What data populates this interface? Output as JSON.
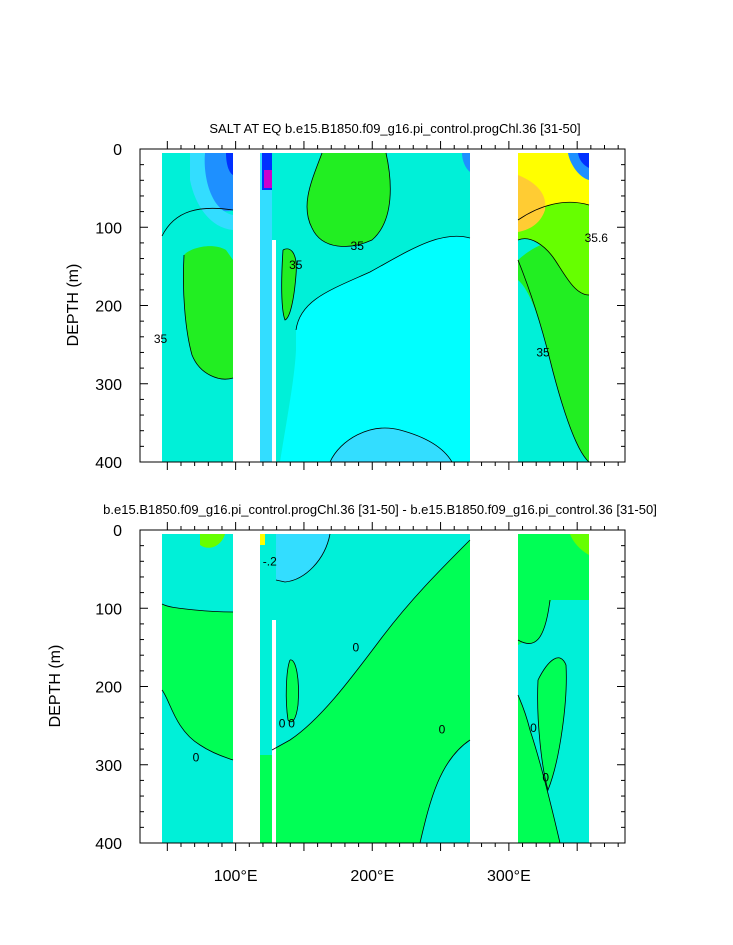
{
  "colors": {
    "cyan": "#00ffff",
    "aquamarine": "#00ffcc",
    "teal_light": "#00f0d8",
    "sky": "#33ddff",
    "blue_mid": "#1e90ff",
    "blue_dark": "#0030ff",
    "green": "#00ff55",
    "green_bright": "#22ee22",
    "lime": "#66ff00",
    "yellow": "#ffff00",
    "orange_yellow": "#ffcc33",
    "magenta": "#cc00cc",
    "brown": "#884400",
    "land": "#ffffff"
  },
  "chart_data": [
    {
      "type": "heatmap",
      "subtype": "contour",
      "title": "SALT AT EQ b.e15.B1850.f09_g16.pi_control.progChl.36 [31-50]",
      "xlabel": "",
      "ylabel": "DEPTH (m)",
      "xlim": [
        30,
        385
      ],
      "ylim": [
        400,
        0
      ],
      "x_ticks": [
        100,
        200,
        300
      ],
      "x_tick_labels": [
        "100°E",
        "200°E",
        "300°E"
      ],
      "y_ticks": [
        0,
        100,
        200,
        300,
        400
      ],
      "y_tick_labels": [
        "0",
        "100",
        "200",
        "300",
        "400"
      ],
      "contour_labels": [
        {
          "text": "35",
          "x": 189,
          "y": 124
        },
        {
          "text": "35",
          "x": 144,
          "y": 148
        },
        {
          "text": "35",
          "x": 45,
          "y": 243
        },
        {
          "text": "35",
          "x": 325,
          "y": 260
        },
        {
          "text": "35.6",
          "x": 364,
          "y": 114
        }
      ],
      "land_gaps_x": [
        [
          97,
          117
        ],
        [
          275,
          314
        ]
      ],
      "data_range_x": [
        43,
        369
      ],
      "grid": false
    },
    {
      "type": "heatmap",
      "subtype": "contour",
      "title": "b.e15.B1850.f09_g16.pi_control.progChl.36 [31-50] - b.e15.B1850.f09_g16.pi_control.36 [31-50]",
      "xlabel": "",
      "ylabel": "DEPTH (m)",
      "xlim": [
        30,
        385
      ],
      "ylim": [
        400,
        0
      ],
      "x_ticks": [
        100,
        200,
        300
      ],
      "x_tick_labels": [
        "100°E",
        "200°E",
        "300°E"
      ],
      "y_ticks": [
        0,
        100,
        200,
        300,
        400
      ],
      "y_tick_labels": [
        "0",
        "100",
        "200",
        "300",
        "400"
      ],
      "contour_labels": [
        {
          "text": "-.2",
          "x": 125,
          "y": 40
        },
        {
          "text": "0",
          "x": 188,
          "y": 150
        },
        {
          "text": "0",
          "x": 134,
          "y": 247
        },
        {
          "text": "0",
          "x": 141,
          "y": 247
        },
        {
          "text": "0",
          "x": 71,
          "y": 291
        },
        {
          "text": "0",
          "x": 251,
          "y": 255
        },
        {
          "text": "0",
          "x": 318,
          "y": 253
        },
        {
          "text": "0",
          "x": 327,
          "y": 316
        }
      ],
      "land_gaps_x": [
        [
          97,
          117
        ],
        [
          275,
          314
        ]
      ],
      "data_range_x": [
        43,
        369
      ],
      "grid": false
    }
  ]
}
